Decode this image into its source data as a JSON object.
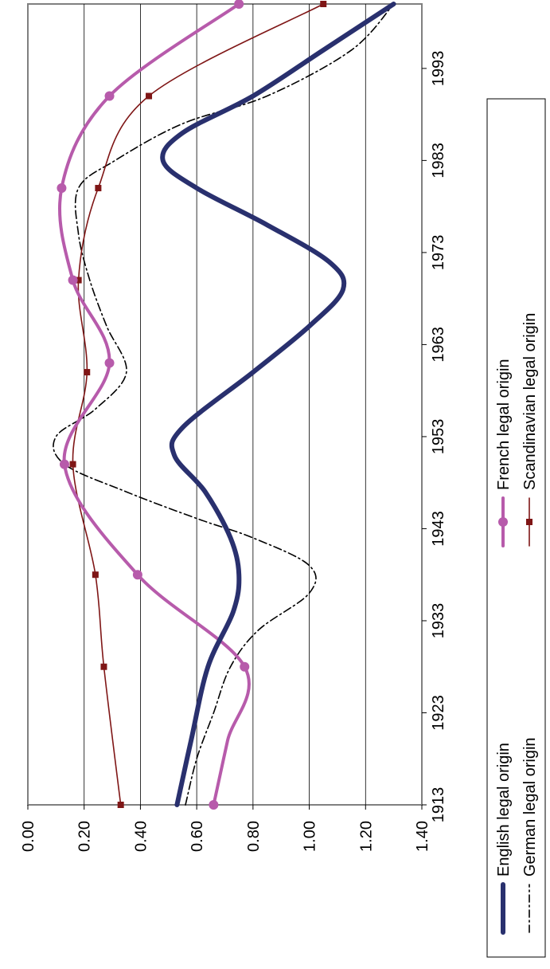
{
  "chart_data": {
    "type": "line",
    "orientation": "rotated-90-counterclockwise",
    "x_ticks": [
      "1913",
      "1923",
      "1933",
      "1943",
      "1953",
      "1963",
      "1973",
      "1983",
      "1993"
    ],
    "xlim": [
      1913,
      2000
    ],
    "y_ticks": [
      "0.00",
      "0.20",
      "0.40",
      "0.60",
      "0.80",
      "1.00",
      "1.20",
      "1.40"
    ],
    "ylim": [
      0,
      1.4
    ],
    "grid": "horizontal value gridlines",
    "legend_position": "right",
    "series": [
      {
        "name": "English legal origin",
        "color": "#29306e",
        "style": "thick-solid",
        "points": [
          [
            1913,
            0.53
          ],
          [
            1920,
            0.58
          ],
          [
            1928,
            0.64
          ],
          [
            1934,
            0.73
          ],
          [
            1938,
            0.75
          ],
          [
            1942,
            0.72
          ],
          [
            1947,
            0.63
          ],
          [
            1951,
            0.52
          ],
          [
            1954,
            0.55
          ],
          [
            1960,
            0.8
          ],
          [
            1965,
            1.0
          ],
          [
            1969,
            1.12
          ],
          [
            1972,
            1.07
          ],
          [
            1976,
            0.85
          ],
          [
            1980,
            0.6
          ],
          [
            1983,
            0.48
          ],
          [
            1986,
            0.55
          ],
          [
            1990,
            0.8
          ],
          [
            1995,
            1.05
          ],
          [
            2000,
            1.3
          ]
        ]
      },
      {
        "name": "French legal origin",
        "color": "#b75bab",
        "style": "solid-circle-markers",
        "points": [
          [
            1913,
            0.66
          ],
          [
            1920,
            0.71
          ],
          [
            1928,
            0.77
          ],
          [
            1938,
            0.39
          ],
          [
            1950,
            0.13
          ],
          [
            1961,
            0.29
          ],
          [
            1970,
            0.16
          ],
          [
            1980,
            0.12
          ],
          [
            1990,
            0.29
          ],
          [
            2000,
            0.75
          ]
        ],
        "markers": [
          [
            1913,
            0.66
          ],
          [
            1928,
            0.77
          ],
          [
            1938,
            0.39
          ],
          [
            1950,
            0.13
          ],
          [
            1961,
            0.29
          ],
          [
            1970,
            0.16
          ],
          [
            1980,
            0.12
          ],
          [
            1990,
            0.29
          ],
          [
            2000,
            0.75
          ]
        ]
      },
      {
        "name": "German legal origin",
        "color": "#000000",
        "style": "dash-dot",
        "points": [
          [
            1913,
            0.56
          ],
          [
            1918,
            0.6
          ],
          [
            1923,
            0.66
          ],
          [
            1928,
            0.72
          ],
          [
            1932,
            0.82
          ],
          [
            1936,
            1.0
          ],
          [
            1939,
            1.0
          ],
          [
            1942,
            0.8
          ],
          [
            1944,
            0.61
          ],
          [
            1947,
            0.35
          ],
          [
            1950,
            0.13
          ],
          [
            1953,
            0.1
          ],
          [
            1956,
            0.24
          ],
          [
            1960,
            0.35
          ],
          [
            1965,
            0.28
          ],
          [
            1970,
            0.22
          ],
          [
            1975,
            0.18
          ],
          [
            1980,
            0.18
          ],
          [
            1983,
            0.31
          ],
          [
            1987,
            0.55
          ],
          [
            1990,
            0.85
          ],
          [
            1995,
            1.15
          ],
          [
            2000,
            1.3
          ]
        ]
      },
      {
        "name": "Scandinavian legal origin",
        "color": "#7f1616",
        "style": "thin-square-markers",
        "points": [
          [
            1913,
            0.33
          ],
          [
            1928,
            0.27
          ],
          [
            1938,
            0.24
          ],
          [
            1950,
            0.16
          ],
          [
            1960,
            0.21
          ],
          [
            1970,
            0.18
          ],
          [
            1980,
            0.25
          ],
          [
            1990,
            0.43
          ],
          [
            2000,
            1.05
          ]
        ],
        "markers": [
          [
            1913,
            0.33
          ],
          [
            1928,
            0.27
          ],
          [
            1938,
            0.24
          ],
          [
            1950,
            0.16
          ],
          [
            1960,
            0.21
          ],
          [
            1970,
            0.18
          ],
          [
            1980,
            0.25
          ],
          [
            1990,
            0.43
          ],
          [
            2000,
            1.05
          ]
        ]
      }
    ]
  }
}
